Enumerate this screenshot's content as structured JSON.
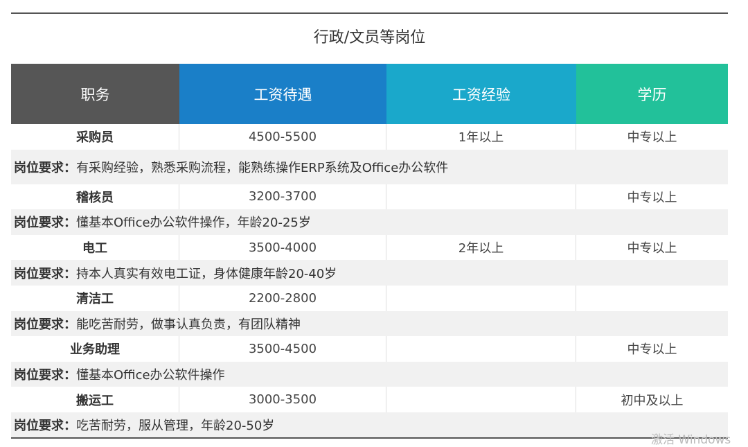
{
  "title": "行政/文员等岗位",
  "headers": [
    {
      "label": "职务",
      "color": "#565656"
    },
    {
      "label": "工资待遇",
      "color": "#1a7fc8"
    },
    {
      "label": "工资经验",
      "color": "#1aa8cb"
    },
    {
      "label": "学历",
      "color": "#22c19a"
    }
  ],
  "requirement_label": "岗位要求：",
  "jobs": [
    {
      "name": "采购员",
      "salary": "4500-5500",
      "experience": "1年以上",
      "education": "中专以上",
      "requirement": "有采购经验，熟悉采购流程，能熟练操作ERP系统及Office办公软件"
    },
    {
      "name": "稽核员",
      "salary": "3200-3700",
      "experience": "",
      "education": "中专以上",
      "requirement": "懂基本Office办公软件操作，年龄20-25岁"
    },
    {
      "name": "电工",
      "salary": "3500-4000",
      "experience": "2年以上",
      "education": "中专以上",
      "requirement": "持本人真实有效电工证，身体健康年龄20-40岁"
    },
    {
      "name": "清洁工",
      "salary": "2200-2800",
      "experience": "",
      "education": "",
      "requirement": "能吃苦耐劳，做事认真负责，有团队精神"
    },
    {
      "name": "业务助理",
      "salary": "3500-4500",
      "experience": "",
      "education": "中专以上",
      "requirement": "懂基本Office办公软件操作"
    },
    {
      "name": "搬运工",
      "salary": "3000-3500",
      "experience": "",
      "education": "初中及以上",
      "requirement": "吃苦耐劳，服从管理，年龄20-50岁"
    }
  ],
  "watermark": "激活 Windows"
}
